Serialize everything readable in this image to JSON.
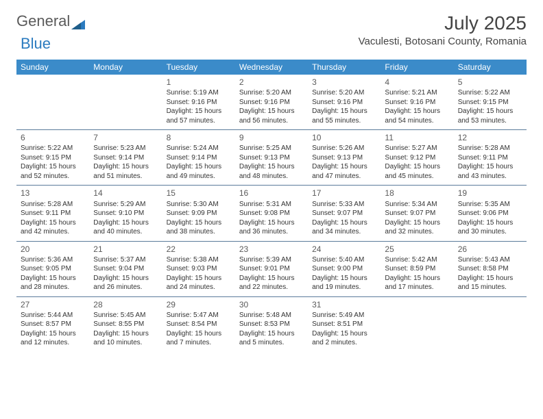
{
  "logo": {
    "text1": "General",
    "text2": "Blue"
  },
  "title": "July 2025",
  "location": "Vaculesti, Botosani County, Romania",
  "colors": {
    "header_bg": "#3b8bc9",
    "header_text": "#ffffff",
    "sep": "#5a7a9a",
    "text": "#333333",
    "title_color": "#444444"
  },
  "day_headers": [
    "Sunday",
    "Monday",
    "Tuesday",
    "Wednesday",
    "Thursday",
    "Friday",
    "Saturday"
  ],
  "weeks": [
    [
      null,
      null,
      {
        "n": "1",
        "sr": "5:19 AM",
        "ss": "9:16 PM",
        "dl": "15 hours and 57 minutes."
      },
      {
        "n": "2",
        "sr": "5:20 AM",
        "ss": "9:16 PM",
        "dl": "15 hours and 56 minutes."
      },
      {
        "n": "3",
        "sr": "5:20 AM",
        "ss": "9:16 PM",
        "dl": "15 hours and 55 minutes."
      },
      {
        "n": "4",
        "sr": "5:21 AM",
        "ss": "9:16 PM",
        "dl": "15 hours and 54 minutes."
      },
      {
        "n": "5",
        "sr": "5:22 AM",
        "ss": "9:15 PM",
        "dl": "15 hours and 53 minutes."
      }
    ],
    [
      {
        "n": "6",
        "sr": "5:22 AM",
        "ss": "9:15 PM",
        "dl": "15 hours and 52 minutes."
      },
      {
        "n": "7",
        "sr": "5:23 AM",
        "ss": "9:14 PM",
        "dl": "15 hours and 51 minutes."
      },
      {
        "n": "8",
        "sr": "5:24 AM",
        "ss": "9:14 PM",
        "dl": "15 hours and 49 minutes."
      },
      {
        "n": "9",
        "sr": "5:25 AM",
        "ss": "9:13 PM",
        "dl": "15 hours and 48 minutes."
      },
      {
        "n": "10",
        "sr": "5:26 AM",
        "ss": "9:13 PM",
        "dl": "15 hours and 47 minutes."
      },
      {
        "n": "11",
        "sr": "5:27 AM",
        "ss": "9:12 PM",
        "dl": "15 hours and 45 minutes."
      },
      {
        "n": "12",
        "sr": "5:28 AM",
        "ss": "9:11 PM",
        "dl": "15 hours and 43 minutes."
      }
    ],
    [
      {
        "n": "13",
        "sr": "5:28 AM",
        "ss": "9:11 PM",
        "dl": "15 hours and 42 minutes."
      },
      {
        "n": "14",
        "sr": "5:29 AM",
        "ss": "9:10 PM",
        "dl": "15 hours and 40 minutes."
      },
      {
        "n": "15",
        "sr": "5:30 AM",
        "ss": "9:09 PM",
        "dl": "15 hours and 38 minutes."
      },
      {
        "n": "16",
        "sr": "5:31 AM",
        "ss": "9:08 PM",
        "dl": "15 hours and 36 minutes."
      },
      {
        "n": "17",
        "sr": "5:33 AM",
        "ss": "9:07 PM",
        "dl": "15 hours and 34 minutes."
      },
      {
        "n": "18",
        "sr": "5:34 AM",
        "ss": "9:07 PM",
        "dl": "15 hours and 32 minutes."
      },
      {
        "n": "19",
        "sr": "5:35 AM",
        "ss": "9:06 PM",
        "dl": "15 hours and 30 minutes."
      }
    ],
    [
      {
        "n": "20",
        "sr": "5:36 AM",
        "ss": "9:05 PM",
        "dl": "15 hours and 28 minutes."
      },
      {
        "n": "21",
        "sr": "5:37 AM",
        "ss": "9:04 PM",
        "dl": "15 hours and 26 minutes."
      },
      {
        "n": "22",
        "sr": "5:38 AM",
        "ss": "9:03 PM",
        "dl": "15 hours and 24 minutes."
      },
      {
        "n": "23",
        "sr": "5:39 AM",
        "ss": "9:01 PM",
        "dl": "15 hours and 22 minutes."
      },
      {
        "n": "24",
        "sr": "5:40 AM",
        "ss": "9:00 PM",
        "dl": "15 hours and 19 minutes."
      },
      {
        "n": "25",
        "sr": "5:42 AM",
        "ss": "8:59 PM",
        "dl": "15 hours and 17 minutes."
      },
      {
        "n": "26",
        "sr": "5:43 AM",
        "ss": "8:58 PM",
        "dl": "15 hours and 15 minutes."
      }
    ],
    [
      {
        "n": "27",
        "sr": "5:44 AM",
        "ss": "8:57 PM",
        "dl": "15 hours and 12 minutes."
      },
      {
        "n": "28",
        "sr": "5:45 AM",
        "ss": "8:55 PM",
        "dl": "15 hours and 10 minutes."
      },
      {
        "n": "29",
        "sr": "5:47 AM",
        "ss": "8:54 PM",
        "dl": "15 hours and 7 minutes."
      },
      {
        "n": "30",
        "sr": "5:48 AM",
        "ss": "8:53 PM",
        "dl": "15 hours and 5 minutes."
      },
      {
        "n": "31",
        "sr": "5:49 AM",
        "ss": "8:51 PM",
        "dl": "15 hours and 2 minutes."
      },
      null,
      null
    ]
  ],
  "labels": {
    "sunrise": "Sunrise:",
    "sunset": "Sunset:",
    "daylight": "Daylight:"
  }
}
